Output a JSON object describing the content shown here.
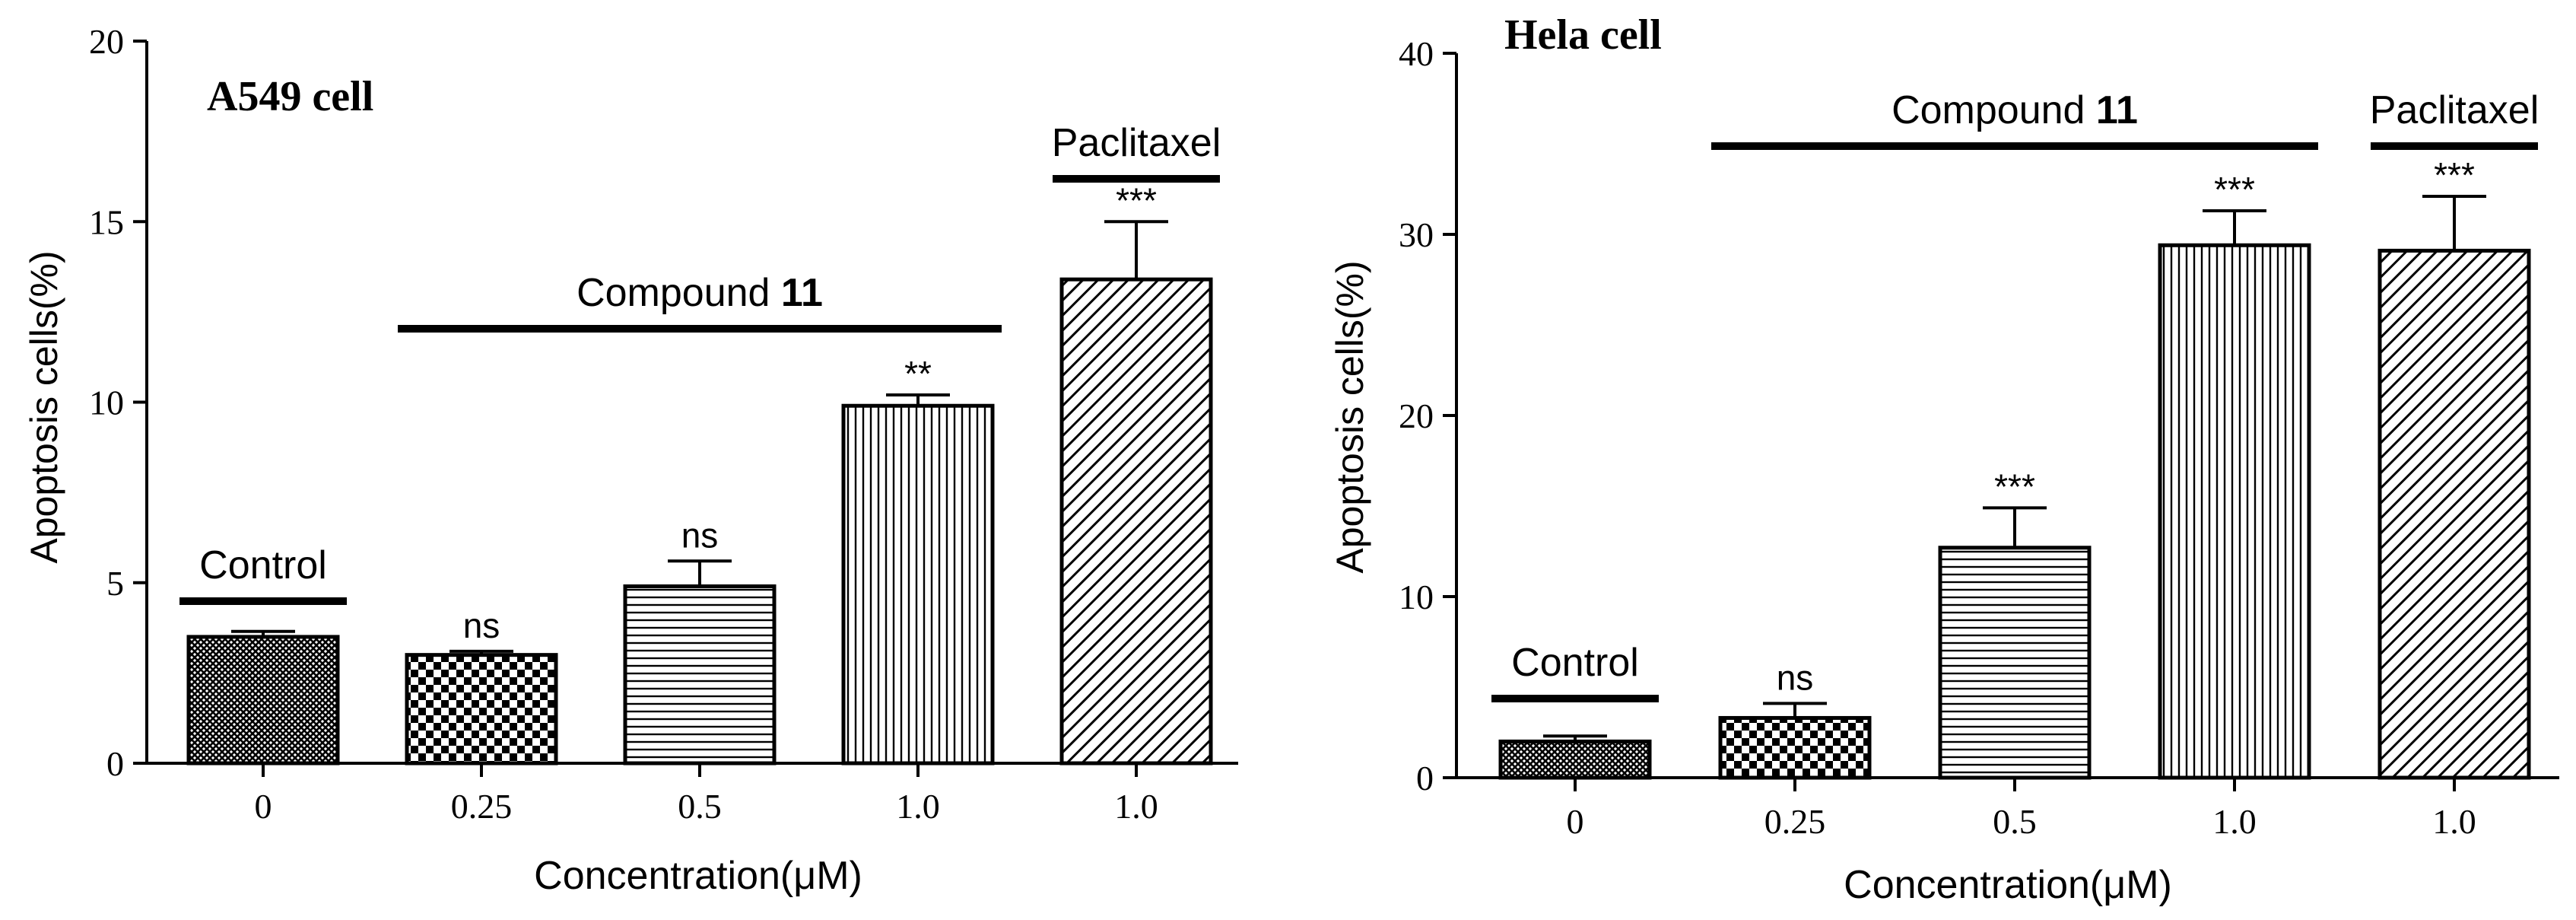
{
  "colors": {
    "ink": "#000000",
    "background": "#ffffff"
  },
  "chart_data": [
    {
      "type": "bar",
      "title": "A549 cell",
      "xlabel": "Concentration(μM)",
      "ylabel": "Apoptosis cells(%)",
      "ylim": [
        0,
        20
      ],
      "yticks": [
        0,
        5,
        10,
        15,
        20
      ],
      "categories": [
        "0",
        "0.25",
        "0.5",
        "1.0",
        "1.0"
      ],
      "values": [
        3.5,
        3.0,
        4.9,
        9.9,
        13.4
      ],
      "errors": [
        0.15,
        0.1,
        0.7,
        0.3,
        1.6
      ],
      "patterns": [
        "crosshatch",
        "checker",
        "horizontal",
        "vertical",
        "diagonal"
      ],
      "significance": [
        "",
        "ns",
        "ns",
        "**",
        "***"
      ],
      "groups": [
        {
          "label": "Control",
          "from": 0,
          "to": 0
        },
        {
          "label": "Compound ",
          "label_bold": "11",
          "from": 1,
          "to": 3
        },
        {
          "label": "Paclitaxel",
          "from": 4,
          "to": 4
        }
      ]
    },
    {
      "type": "bar",
      "title": "Hela cell",
      "xlabel": "Concentration(μM)",
      "ylabel": "Apoptosis cells(%)",
      "ylim": [
        0,
        40
      ],
      "yticks": [
        0,
        10,
        20,
        30,
        40
      ],
      "categories": [
        "0",
        "0.25",
        "0.5",
        "1.0",
        "1.0"
      ],
      "values": [
        2.0,
        3.3,
        12.7,
        29.4,
        29.1
      ],
      "errors": [
        0.3,
        0.8,
        2.2,
        1.9,
        3.0
      ],
      "patterns": [
        "crosshatch",
        "checker",
        "horizontal",
        "vertical",
        "diagonal"
      ],
      "significance": [
        "",
        "ns",
        "***",
        "***",
        "***"
      ],
      "groups": [
        {
          "label": "Control",
          "from": 0,
          "to": 0
        },
        {
          "label": "Compound ",
          "label_bold": "11",
          "from": 1,
          "to": 3
        },
        {
          "label": "Paclitaxel",
          "from": 4,
          "to": 4
        }
      ]
    }
  ]
}
